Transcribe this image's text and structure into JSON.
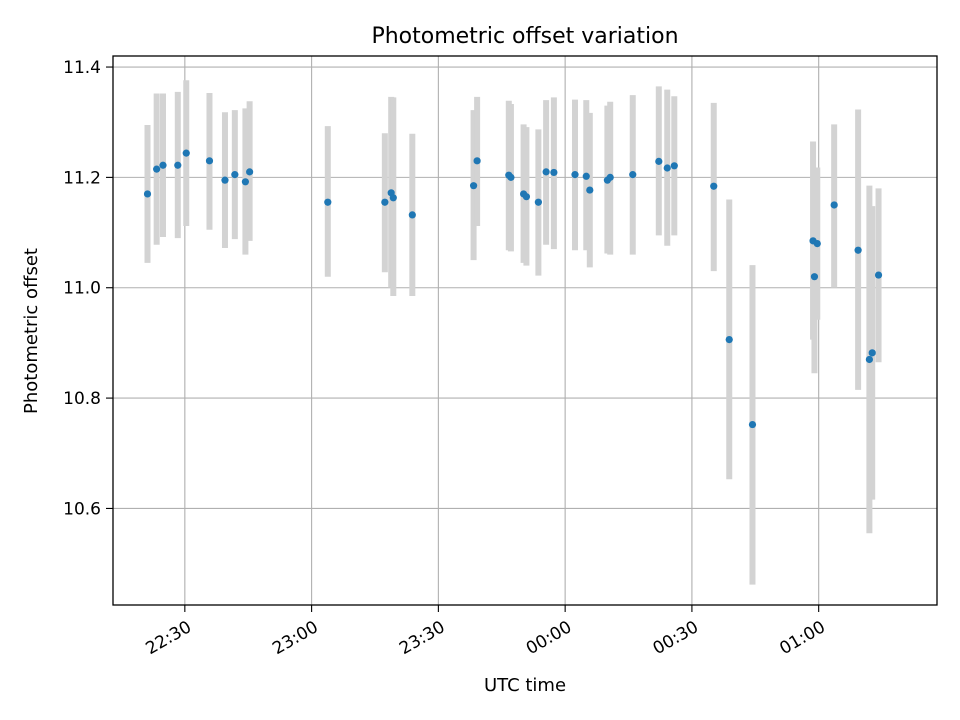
{
  "chart_data": {
    "type": "scatter",
    "title": "Photometric offset variation",
    "xlabel": "UTC time",
    "ylabel": "Photometric offset",
    "xlim": [
      "22:13",
      "01:28"
    ],
    "ylim": [
      10.425,
      11.42
    ],
    "x_ticks": [
      "22:30",
      "23:00",
      "23:30",
      "00:00",
      "00:30",
      "01:00"
    ],
    "y_ticks": [
      10.6,
      10.8,
      11.0,
      11.2,
      11.4
    ],
    "y_tick_labels": [
      "10.6",
      "10.8",
      "11.0",
      "11.2",
      "11.4"
    ],
    "grid": true,
    "colors": {
      "point": "#1f77b4",
      "errorbar": "#d3d3d3",
      "grid": "#b0b0b0"
    },
    "series": [
      {
        "points": [
          {
            "x": "22:21:10",
            "y": 11.17,
            "yerr_low": 11.045,
            "yerr_high": 11.295
          },
          {
            "x": "22:23:20",
            "y": 11.215,
            "yerr_low": 11.078,
            "yerr_high": 11.352
          },
          {
            "x": "22:24:50",
            "y": 11.222,
            "yerr_low": 11.092,
            "yerr_high": 11.352
          },
          {
            "x": "22:28:20",
            "y": 11.222,
            "yerr_low": 11.09,
            "yerr_high": 11.355
          },
          {
            "x": "22:30:20",
            "y": 11.244,
            "yerr_low": 11.112,
            "yerr_high": 11.376
          },
          {
            "x": "22:35:50",
            "y": 11.23,
            "yerr_low": 11.105,
            "yerr_high": 11.353
          },
          {
            "x": "22:39:30",
            "y": 11.195,
            "yerr_low": 11.072,
            "yerr_high": 11.318
          },
          {
            "x": "22:41:50",
            "y": 11.205,
            "yerr_low": 11.088,
            "yerr_high": 11.322
          },
          {
            "x": "22:44:20",
            "y": 11.192,
            "yerr_low": 11.06,
            "yerr_high": 11.325
          },
          {
            "x": "22:45:20",
            "y": 11.21,
            "yerr_low": 11.085,
            "yerr_high": 11.338
          },
          {
            "x": "23:03:50",
            "y": 11.155,
            "yerr_low": 11.02,
            "yerr_high": 11.293
          },
          {
            "x": "23:17:20",
            "y": 11.155,
            "yerr_low": 11.028,
            "yerr_high": 11.28
          },
          {
            "x": "23:18:50",
            "y": 11.172,
            "yerr_low": 11.0,
            "yerr_high": 11.346
          },
          {
            "x": "23:19:20",
            "y": 11.163,
            "yerr_low": 10.985,
            "yerr_high": 11.345
          },
          {
            "x": "23:23:50",
            "y": 11.132,
            "yerr_low": 10.985,
            "yerr_high": 11.279
          },
          {
            "x": "23:38:20",
            "y": 11.185,
            "yerr_low": 11.05,
            "yerr_high": 11.322
          },
          {
            "x": "23:39:10",
            "y": 11.23,
            "yerr_low": 11.112,
            "yerr_high": 11.346
          },
          {
            "x": "23:46:40",
            "y": 11.204,
            "yerr_low": 11.068,
            "yerr_high": 11.339
          },
          {
            "x": "23:47:10",
            "y": 11.2,
            "yerr_low": 11.066,
            "yerr_high": 11.333
          },
          {
            "x": "23:50:10",
            "y": 11.17,
            "yerr_low": 11.045,
            "yerr_high": 11.296
          },
          {
            "x": "23:50:50",
            "y": 11.165,
            "yerr_low": 11.04,
            "yerr_high": 11.291
          },
          {
            "x": "23:53:40",
            "y": 11.155,
            "yerr_low": 11.022,
            "yerr_high": 11.287
          },
          {
            "x": "23:55:30",
            "y": 11.21,
            "yerr_low": 11.078,
            "yerr_high": 11.34
          },
          {
            "x": "23:57:20",
            "y": 11.209,
            "yerr_low": 11.07,
            "yerr_high": 11.345
          },
          {
            "x": "00:02:20",
            "y": 11.205,
            "yerr_low": 11.068,
            "yerr_high": 11.341
          },
          {
            "x": "00:05:00",
            "y": 11.202,
            "yerr_low": 11.068,
            "yerr_high": 11.34
          },
          {
            "x": "00:05:50",
            "y": 11.177,
            "yerr_low": 11.037,
            "yerr_high": 11.317
          },
          {
            "x": "00:10:00",
            "y": 11.195,
            "yerr_low": 11.062,
            "yerr_high": 11.33
          },
          {
            "x": "00:10:40",
            "y": 11.2,
            "yerr_low": 11.06,
            "yerr_high": 11.337
          },
          {
            "x": "00:16:00",
            "y": 11.205,
            "yerr_low": 11.06,
            "yerr_high": 11.349
          },
          {
            "x": "00:22:10",
            "y": 11.229,
            "yerr_low": 11.095,
            "yerr_high": 11.365
          },
          {
            "x": "00:24:10",
            "y": 11.217,
            "yerr_low": 11.076,
            "yerr_high": 11.359
          },
          {
            "x": "00:25:50",
            "y": 11.221,
            "yerr_low": 11.095,
            "yerr_high": 11.347
          },
          {
            "x": "00:35:10",
            "y": 11.184,
            "yerr_low": 11.03,
            "yerr_high": 11.335
          },
          {
            "x": "00:38:50",
            "y": 10.906,
            "yerr_low": 10.653,
            "yerr_high": 11.16
          },
          {
            "x": "00:44:20",
            "y": 10.752,
            "yerr_low": 10.462,
            "yerr_high": 11.041
          },
          {
            "x": "00:58:40",
            "y": 11.085,
            "yerr_low": 10.906,
            "yerr_high": 11.265
          },
          {
            "x": "00:59:00",
            "y": 11.02,
            "yerr_low": 10.845,
            "yerr_high": 11.195
          },
          {
            "x": "00:59:40",
            "y": 11.08,
            "yerr_low": 10.942,
            "yerr_high": 11.218
          },
          {
            "x": "01:03:40",
            "y": 11.15,
            "yerr_low": 11.0,
            "yerr_high": 11.296
          },
          {
            "x": "01:09:20",
            "y": 11.068,
            "yerr_low": 10.815,
            "yerr_high": 11.323
          },
          {
            "x": "01:12:00",
            "y": 10.87,
            "yerr_low": 10.555,
            "yerr_high": 11.185
          },
          {
            "x": "01:12:40",
            "y": 10.882,
            "yerr_low": 10.616,
            "yerr_high": 11.148
          },
          {
            "x": "01:14:10",
            "y": 11.023,
            "yerr_low": 10.865,
            "yerr_high": 11.18
          }
        ]
      }
    ]
  }
}
